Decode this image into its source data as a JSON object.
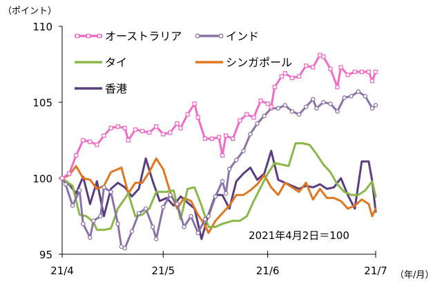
{
  "chart_data": {
    "type": "line",
    "unit_label": "（ポイント）",
    "x_unit_label": "（年/月）",
    "note": "2021年4月2日＝100",
    "ylim": [
      95,
      110
    ],
    "yticks": [
      95,
      100,
      105,
      110
    ],
    "x_range": [
      0,
      90
    ],
    "x_ticks": [
      {
        "x": 0,
        "label": "21/4"
      },
      {
        "x": 29,
        "label": "21/5"
      },
      {
        "x": 59,
        "label": "21/6"
      },
      {
        "x": 90,
        "label": "21/7"
      }
    ],
    "legend": {
      "placement": "top-left",
      "columns": 2
    },
    "series": [
      {
        "name": "オーストラリア",
        "color": "#f06ac8",
        "marker": "square",
        "points": [
          [
            0,
            100
          ],
          [
            2,
            100.3
          ],
          [
            4,
            101.5
          ],
          [
            6,
            102.5
          ],
          [
            8,
            102.4
          ],
          [
            10,
            102.2
          ],
          [
            12,
            102.8
          ],
          [
            14,
            103.3
          ],
          [
            16,
            103.4
          ],
          [
            18,
            103.3
          ],
          [
            19,
            102.5
          ],
          [
            21,
            103.2
          ],
          [
            23,
            103.1
          ],
          [
            25,
            103.0
          ],
          [
            27,
            103.4
          ],
          [
            29,
            102.9
          ],
          [
            31,
            103.0
          ],
          [
            33,
            103.6
          ],
          [
            34,
            103.3
          ],
          [
            36,
            104.2
          ],
          [
            38,
            104.9
          ],
          [
            39,
            104.0
          ],
          [
            41,
            102.6
          ],
          [
            43,
            102.6
          ],
          [
            45,
            102.7
          ],
          [
            46,
            101.5
          ],
          [
            47,
            102.8
          ],
          [
            49,
            102.6
          ],
          [
            51,
            103.8
          ],
          [
            53,
            104.2
          ],
          [
            55,
            104.0
          ],
          [
            57,
            105.1
          ],
          [
            59,
            104.9
          ],
          [
            60,
            104.7
          ],
          [
            61,
            106.0
          ],
          [
            63,
            106.7
          ],
          [
            64,
            106.9
          ],
          [
            66,
            106.6
          ],
          [
            68,
            106.7
          ],
          [
            70,
            107.4
          ],
          [
            72,
            107.3
          ],
          [
            74,
            108.1
          ],
          [
            75,
            108.0
          ],
          [
            77,
            107.2
          ],
          [
            79,
            106.0
          ],
          [
            80,
            107.3
          ],
          [
            82,
            106.8
          ],
          [
            84,
            107.0
          ],
          [
            86,
            107.0
          ],
          [
            88,
            107.0
          ],
          [
            89,
            106.4
          ],
          [
            90,
            107.0
          ]
        ]
      },
      {
        "name": "インド",
        "color": "#8a72a8",
        "marker": "circle",
        "points": [
          [
            0,
            100
          ],
          [
            1,
            99.6
          ],
          [
            3,
            98.2
          ],
          [
            5,
            99.2
          ],
          [
            6,
            97.0
          ],
          [
            8,
            96.1
          ],
          [
            9,
            97.2
          ],
          [
            11,
            97.5
          ],
          [
            12,
            99.4
          ],
          [
            14,
            99.1
          ],
          [
            16,
            97.0
          ],
          [
            17,
            95.5
          ],
          [
            18,
            95.4
          ],
          [
            20,
            96.5
          ],
          [
            22,
            97.7
          ],
          [
            24,
            98.0
          ],
          [
            26,
            96.8
          ],
          [
            27,
            96.0
          ],
          [
            29,
            98.1
          ],
          [
            31,
            98.9
          ],
          [
            33,
            98.3
          ],
          [
            35,
            96.8
          ],
          [
            37,
            97.5
          ],
          [
            39,
            96.4
          ],
          [
            41,
            97.3
          ],
          [
            42,
            97.5
          ],
          [
            44,
            98.8
          ],
          [
            46,
            99.8
          ],
          [
            47,
            99.0
          ],
          [
            48,
            100.6
          ],
          [
            50,
            101.2
          ],
          [
            52,
            101.8
          ],
          [
            54,
            102.9
          ],
          [
            56,
            103.6
          ],
          [
            58,
            104.1
          ],
          [
            60,
            104.6
          ],
          [
            62,
            104.6
          ],
          [
            64,
            104.8
          ],
          [
            66,
            104.4
          ],
          [
            68,
            104.2
          ],
          [
            70,
            104.7
          ],
          [
            72,
            105.2
          ],
          [
            73,
            104.6
          ],
          [
            75,
            105.0
          ],
          [
            77,
            104.9
          ],
          [
            79,
            104.4
          ],
          [
            81,
            105.3
          ],
          [
            83,
            105.4
          ],
          [
            85,
            105.7
          ],
          [
            87,
            105.4
          ],
          [
            89,
            104.6
          ],
          [
            90,
            104.8
          ]
        ]
      },
      {
        "name": "タイ",
        "color": "#8ab848",
        "marker": "none",
        "points": [
          [
            0,
            100
          ],
          [
            3,
            99.5
          ],
          [
            5,
            97.6
          ],
          [
            7,
            97.5
          ],
          [
            9,
            97.1
          ],
          [
            10,
            96.6
          ],
          [
            12,
            96.6
          ],
          [
            14,
            96.7
          ],
          [
            16,
            98.0
          ],
          [
            19,
            99.0
          ],
          [
            21,
            97.5
          ],
          [
            23,
            97.6
          ],
          [
            25,
            98.0
          ],
          [
            27,
            99.1
          ],
          [
            30,
            99.1
          ],
          [
            32,
            99.2
          ],
          [
            34,
            97.3
          ],
          [
            36,
            99.3
          ],
          [
            38,
            99.4
          ],
          [
            40,
            98.2
          ],
          [
            42,
            96.8
          ],
          [
            44,
            96.8
          ],
          [
            46,
            97.0
          ],
          [
            49,
            97.2
          ],
          [
            51,
            97.2
          ],
          [
            53,
            97.5
          ],
          [
            55,
            98.5
          ],
          [
            57,
            99.4
          ],
          [
            59,
            100.3
          ],
          [
            61,
            101.0
          ],
          [
            63,
            100.9
          ],
          [
            65,
            100.8
          ],
          [
            67,
            102.3
          ],
          [
            69,
            102.3
          ],
          [
            71,
            102.2
          ],
          [
            73,
            101.6
          ],
          [
            75,
            100.9
          ],
          [
            77,
            100.4
          ],
          [
            79,
            99.6
          ],
          [
            81,
            99.1
          ],
          [
            83,
            98.9
          ],
          [
            85,
            98.9
          ],
          [
            87,
            99.2
          ],
          [
            89,
            99.8
          ],
          [
            90,
            98.8
          ]
        ]
      },
      {
        "name": "シンガポール",
        "color": "#e0761e",
        "marker": "none",
        "points": [
          [
            0,
            100
          ],
          [
            2,
            100.2
          ],
          [
            4,
            100.8
          ],
          [
            6,
            100.0
          ],
          [
            8,
            99.9
          ],
          [
            10,
            99.3
          ],
          [
            12,
            99.5
          ],
          [
            14,
            100.4
          ],
          [
            17,
            100.7
          ],
          [
            19,
            99.0
          ],
          [
            21,
            99.7
          ],
          [
            23,
            99.7
          ],
          [
            25,
            100.4
          ],
          [
            27,
            101.3
          ],
          [
            29,
            100.6
          ],
          [
            31,
            99.1
          ],
          [
            33,
            98.0
          ],
          [
            35,
            98.7
          ],
          [
            37,
            98.5
          ],
          [
            39,
            97.6
          ],
          [
            41,
            96.9
          ],
          [
            42,
            96.4
          ],
          [
            44,
            97.2
          ],
          [
            46,
            97.7
          ],
          [
            48,
            98.2
          ],
          [
            50,
            98.9
          ],
          [
            52,
            98.9
          ],
          [
            54,
            99.2
          ],
          [
            56,
            99.6
          ],
          [
            58,
            100.2
          ],
          [
            60,
            99.4
          ],
          [
            62,
            98.9
          ],
          [
            64,
            99.7
          ],
          [
            66,
            99.4
          ],
          [
            68,
            99.1
          ],
          [
            70,
            99.7
          ],
          [
            72,
            98.6
          ],
          [
            74,
            99.3
          ],
          [
            76,
            98.7
          ],
          [
            78,
            98.7
          ],
          [
            80,
            98.5
          ],
          [
            82,
            98.0
          ],
          [
            84,
            98.2
          ],
          [
            86,
            98.6
          ],
          [
            88,
            98.3
          ],
          [
            89,
            97.5
          ],
          [
            90,
            98.0
          ]
        ]
      },
      {
        "name": "香港",
        "color": "#5a3c80",
        "marker": "none",
        "points": [
          [
            0,
            100
          ],
          [
            2,
            99.6
          ],
          [
            4,
            99.0
          ],
          [
            6,
            100.1
          ],
          [
            8,
            98.3
          ],
          [
            10,
            99.8
          ],
          [
            12,
            97.5
          ],
          [
            14,
            99.3
          ],
          [
            16,
            99.7
          ],
          [
            18,
            99.4
          ],
          [
            20,
            98.8
          ],
          [
            22,
            99.3
          ],
          [
            24,
            101.3
          ],
          [
            26,
            99.8
          ],
          [
            28,
            98.5
          ],
          [
            30,
            98.7
          ],
          [
            32,
            98.2
          ],
          [
            34,
            98.8
          ],
          [
            36,
            98.4
          ],
          [
            38,
            98.0
          ],
          [
            40,
            96.0
          ],
          [
            42,
            97.6
          ],
          [
            44,
            98.9
          ],
          [
            46,
            98.9
          ],
          [
            48,
            98.0
          ],
          [
            50,
            99.8
          ],
          [
            52,
            100.3
          ],
          [
            54,
            100.7
          ],
          [
            56,
            99.9
          ],
          [
            58,
            100.3
          ],
          [
            60,
            101.8
          ],
          [
            62,
            99.9
          ],
          [
            64,
            99.7
          ],
          [
            66,
            99.5
          ],
          [
            68,
            99.3
          ],
          [
            70,
            99.5
          ],
          [
            72,
            99.4
          ],
          [
            74,
            99.6
          ],
          [
            76,
            99.3
          ],
          [
            78,
            99.4
          ],
          [
            80,
            100.0
          ],
          [
            82,
            98.9
          ],
          [
            84,
            98.0
          ],
          [
            86,
            101.1
          ],
          [
            88,
            101.1
          ],
          [
            89,
            99.8
          ],
          [
            90,
            97.8
          ]
        ]
      }
    ]
  }
}
